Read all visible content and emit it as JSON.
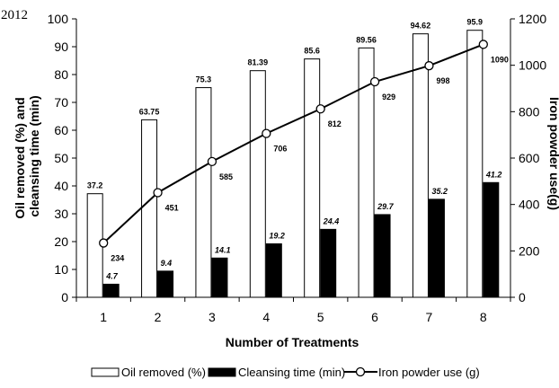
{
  "corner_text": "2012",
  "chart_data": {
    "type": "bar",
    "categories": [
      "1",
      "2",
      "3",
      "4",
      "5",
      "6",
      "7",
      "8"
    ],
    "series": [
      {
        "name": "Oil removed (%)",
        "kind": "bar",
        "axis": "left",
        "fill": "#ffffff",
        "values": [
          37.2,
          63.75,
          75.3,
          81.39,
          85.6,
          89.56,
          94.62,
          95.9
        ],
        "labels": [
          "37.2",
          "63.75",
          "75.3",
          "81.39",
          "85.6",
          "89.56",
          "94.62",
          "95.9"
        ]
      },
      {
        "name": "Cleansing time (min)",
        "kind": "bar",
        "axis": "left",
        "fill": "#000000",
        "values": [
          4.7,
          9.4,
          14.1,
          19.2,
          24.4,
          29.7,
          35.2,
          41.2
        ],
        "labels": [
          "4.7",
          "9.4",
          "14.1",
          "19.2",
          "24.4",
          "29.7",
          "35.2",
          "41.2"
        ]
      },
      {
        "name": "Iron powder use (g)",
        "kind": "line",
        "axis": "right",
        "marker": "open-circle",
        "values": [
          234,
          451,
          585,
          706,
          812,
          929,
          998,
          1090
        ],
        "labels": [
          "234",
          "451",
          "585",
          "706",
          "812",
          "929",
          "998",
          "1090"
        ]
      }
    ],
    "xlabel": "Number of Treatments",
    "ylabel_left_lines": [
      "Oil removed (%) and",
      "cleansing time (min)"
    ],
    "ylabel_right": "Iron powder use(g)",
    "ylim_left": [
      0,
      100
    ],
    "yticks_left": [
      "0",
      "10",
      "20",
      "30",
      "40",
      "50",
      "60",
      "70",
      "80",
      "90",
      "100"
    ],
    "ylim_right": [
      0,
      1200
    ],
    "yticks_right": [
      "0",
      "200",
      "400",
      "600",
      "800",
      "1000",
      "1200"
    ],
    "grid": false,
    "legend_position": "bottom"
  }
}
